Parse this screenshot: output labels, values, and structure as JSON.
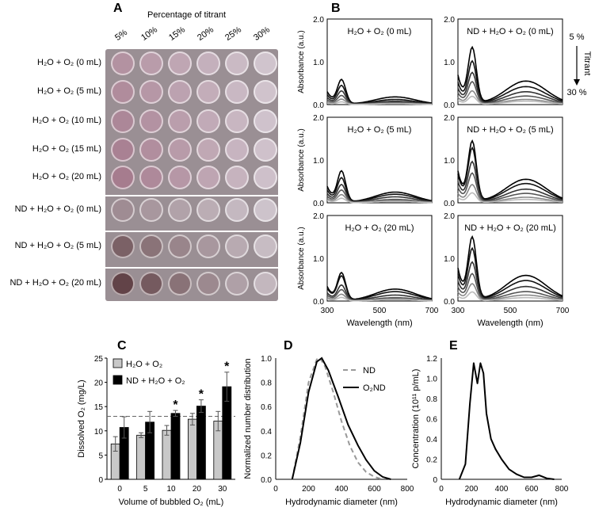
{
  "panels": {
    "a": "A",
    "b": "B",
    "c": "C",
    "d": "D",
    "e": "E"
  },
  "panel_a": {
    "header": "Percentage of titrant",
    "percentages": [
      "5%",
      "10%",
      "15%",
      "20%",
      "25%",
      "30%"
    ],
    "rows": [
      {
        "label": "H₂O + O₂ (0 mL)"
      },
      {
        "label": "H₂O + O₂ (5 mL)"
      },
      {
        "label": "H₂O + O₂ (10 mL)"
      },
      {
        "label": "H₂O + O₂ (15 mL)"
      },
      {
        "label": "H₂O + O₂ (20 mL)"
      },
      {
        "label": "ND + H₂O + O₂ (0 mL)"
      },
      {
        "label": "ND + H₂O + O₂ (5 mL)"
      },
      {
        "label": "ND + H₂O + O₂ (20 mL)"
      }
    ]
  },
  "chart_data": [
    {
      "type": "line",
      "panel": "B",
      "xlabel": "Wavelength (nm)",
      "ylabel": "Absorbance (a.u.)",
      "xlim": [
        300,
        700
      ],
      "ylim": [
        0,
        2
      ],
      "xticks": [
        "300",
        "500",
        "700"
      ],
      "yticks": [
        "0.0",
        "1.0",
        "2.0"
      ],
      "legend_top": "5 %",
      "legend_arrow": "Titrant",
      "legend_bottom": "30 %",
      "subplots": [
        {
          "title": "H₂O + O₂ (0 mL)",
          "peaks": [
            0.55,
            0.42,
            0.3,
            0.2,
            0.12,
            0.06
          ],
          "peak2": [
            0.18,
            0.12,
            0.08,
            0.05,
            0.03,
            0.02
          ]
        },
        {
          "title": "ND + H₂O + O₂ (0 mL)",
          "peaks": [
            1.25,
            0.95,
            0.7,
            0.5,
            0.3,
            0.18
          ],
          "peak2": [
            0.55,
            0.42,
            0.3,
            0.2,
            0.12,
            0.08
          ]
        },
        {
          "title": "H₂O + O₂ (5 mL)",
          "peaks": [
            0.7,
            0.55,
            0.4,
            0.28,
            0.18,
            0.1
          ],
          "peak2": [
            0.25,
            0.2,
            0.14,
            0.08,
            0.05,
            0.03
          ]
        },
        {
          "title": "ND + H₂O + O₂ (5 mL)",
          "peaks": [
            1.35,
            1.2,
            0.9,
            0.65,
            0.4,
            0.22
          ],
          "peak2": [
            0.55,
            0.45,
            0.32,
            0.22,
            0.13,
            0.08
          ]
        },
        {
          "title": "H₂O + O₂ (20 mL)",
          "peaks": [
            0.62,
            0.55,
            0.35,
            0.25,
            0.15,
            0.08
          ],
          "peak2": [
            0.28,
            0.22,
            0.14,
            0.08,
            0.05,
            0.03
          ]
        },
        {
          "title": "ND + H₂O + O₂ (20 mL)",
          "peaks": [
            1.4,
            1.15,
            0.85,
            0.6,
            0.38,
            0.2
          ],
          "peak2": [
            0.6,
            0.48,
            0.34,
            0.22,
            0.14,
            0.08
          ]
        }
      ]
    },
    {
      "type": "bar",
      "panel": "C",
      "xlabel": "Volume of bubbled O₂ (mL)",
      "ylabel": "Dissolved O₂ (mg/L)",
      "categories": [
        "0",
        "5",
        "10",
        "20",
        "30"
      ],
      "ylim": [
        0,
        25
      ],
      "yticks": [
        "0",
        "5",
        "10",
        "15",
        "20",
        "25"
      ],
      "reference_line": 13,
      "series": [
        {
          "name": "H₂O + O₂",
          "color": "#c8c8c8",
          "values": [
            7.3,
            9.1,
            10.1,
            12.4,
            12.0
          ],
          "errors": [
            1.5,
            0.5,
            1.0,
            1.2,
            2.0
          ],
          "stars": [
            "",
            "",
            "",
            "",
            ""
          ]
        },
        {
          "name": "ND + H₂O + O₂",
          "color": "#000000",
          "values": [
            10.7,
            11.8,
            13.6,
            15.1,
            19.1
          ],
          "errors": [
            2.2,
            2.2,
            0.6,
            1.3,
            3.0
          ],
          "stars": [
            "",
            "",
            "*",
            "*",
            "*"
          ]
        }
      ]
    },
    {
      "type": "line",
      "panel": "D",
      "xlabel": "Hydrodynamic diameter (nm)",
      "ylabel": "Normalized number distribution",
      "xlim": [
        0,
        800
      ],
      "ylim": [
        0,
        1.0
      ],
      "xticks": [
        "0",
        "200",
        "400",
        "600",
        "800"
      ],
      "yticks": [
        "0.0",
        "0.2",
        "0.4",
        "0.6",
        "0.8",
        "1.0"
      ],
      "series": [
        {
          "name": "ND",
          "style": "dashed",
          "x": [
            100,
            150,
            200,
            250,
            270,
            300,
            350,
            400,
            450,
            500,
            550,
            600,
            650
          ],
          "y": [
            0.0,
            0.35,
            0.8,
            0.99,
            1.0,
            0.93,
            0.72,
            0.48,
            0.28,
            0.14,
            0.06,
            0.02,
            0.0
          ]
        },
        {
          "name": "O₂ND",
          "style": "solid",
          "x": [
            100,
            150,
            200,
            250,
            280,
            320,
            380,
            440,
            500,
            550,
            600,
            650,
            700
          ],
          "y": [
            0.0,
            0.3,
            0.72,
            0.97,
            1.0,
            0.9,
            0.68,
            0.45,
            0.28,
            0.16,
            0.07,
            0.02,
            0.0
          ]
        }
      ]
    },
    {
      "type": "line",
      "panel": "E",
      "xlabel": "Hydrodynamic diameter (nm)",
      "ylabel": "Concentration (10¹¹ p/mL)",
      "xlim": [
        0,
        800
      ],
      "ylim": [
        0,
        1.2
      ],
      "xticks": [
        "0",
        "200",
        "400",
        "600",
        "800"
      ],
      "yticks": [
        "0",
        "0.2",
        "0.4",
        "0.6",
        "0.8",
        "1.0",
        "1.2"
      ],
      "series": [
        {
          "name": "",
          "x": [
            120,
            160,
            190,
            215,
            240,
            260,
            280,
            300,
            330,
            360,
            400,
            450,
            500,
            550,
            600,
            650,
            700,
            750
          ],
          "y": [
            0.0,
            0.15,
            0.75,
            1.15,
            0.95,
            1.15,
            1.05,
            0.65,
            0.4,
            0.3,
            0.2,
            0.1,
            0.05,
            0.02,
            0.02,
            0.04,
            0.01,
            0.0
          ]
        }
      ]
    }
  ]
}
